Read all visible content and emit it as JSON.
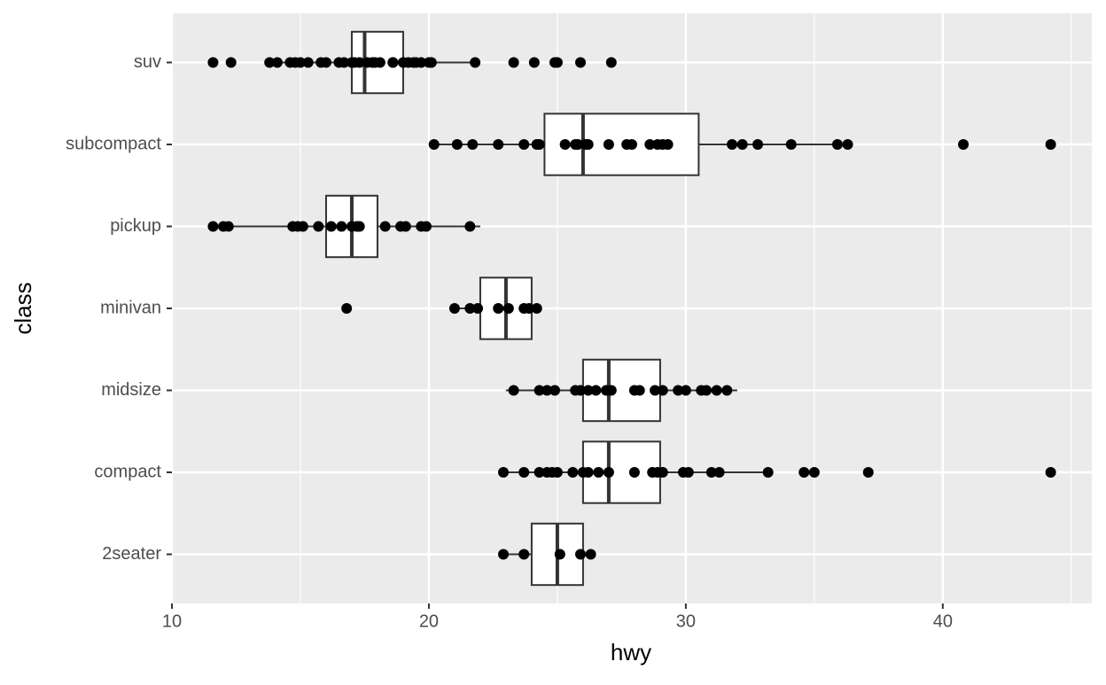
{
  "chart_data": {
    "type": "boxplot",
    "orientation": "horizontal",
    "x_label": "hwy",
    "y_label": "class",
    "categories": [
      "suv",
      "subcompact",
      "pickup",
      "minivan",
      "midsize",
      "compact",
      "2seater"
    ],
    "boxes": [
      {
        "low": 14,
        "q1": 17,
        "median": 17.5,
        "q3": 19,
        "high": 22
      },
      {
        "low": 20,
        "q1": 24.5,
        "median": 26,
        "q3": 30.5,
        "high": 36
      },
      {
        "low": 12,
        "q1": 16,
        "median": 17,
        "q3": 18,
        "high": 22
      },
      {
        "low": 21,
        "q1": 22,
        "median": 23,
        "q3": 24,
        "high": 24
      },
      {
        "low": 23,
        "q1": 26,
        "median": 27,
        "q3": 29,
        "high": 32
      },
      {
        "low": 23,
        "q1": 26,
        "median": 27,
        "q3": 29,
        "high": 33
      },
      {
        "low": 23,
        "q1": 24,
        "median": 25,
        "q3": 26,
        "high": 26
      }
    ],
    "points": [
      [
        11.6,
        12.3,
        13.8,
        14.1,
        14.6,
        14.8,
        15.0,
        15.3,
        15.8,
        16.0,
        16.5,
        16.7,
        17.0,
        17.1,
        17.3,
        17.6,
        17.8,
        17.9,
        18.1,
        18.6,
        18.6,
        19.0,
        19.2,
        19.4,
        19.5,
        19.7,
        20.0,
        20.1,
        21.8,
        23.3,
        24.1,
        24.9,
        25.0,
        25.9,
        27.1
      ],
      [
        20.2,
        21.1,
        21.7,
        22.7,
        23.7,
        24.2,
        24.3,
        25.3,
        25.7,
        25.8,
        26.1,
        26.2,
        27.0,
        27.7,
        27.9,
        28.6,
        28.9,
        29.1,
        29.3,
        31.8,
        32.2,
        32.8,
        34.1,
        35.9,
        36.3,
        40.8,
        44.2
      ],
      [
        11.6,
        12.0,
        12.2,
        14.7,
        14.9,
        15.1,
        15.7,
        16.2,
        16.6,
        17.0,
        17.2,
        17.3,
        18.3,
        18.9,
        19.1,
        19.7,
        19.9,
        21.6
      ],
      [
        16.8,
        21.0,
        21.6,
        21.9,
        22.7,
        23.1,
        23.7,
        23.9,
        24.2
      ],
      [
        23.3,
        24.3,
        24.6,
        24.9,
        25.7,
        25.9,
        26.2,
        26.5,
        26.9,
        27.1,
        28.0,
        28.2,
        28.8,
        29.1,
        29.7,
        30.0,
        30.6,
        30.8,
        31.2,
        31.6
      ],
      [
        22.9,
        23.7,
        24.3,
        24.6,
        24.8,
        25.0,
        25.6,
        26.0,
        26.2,
        26.6,
        27.0,
        28.0,
        28.7,
        28.9,
        29.1,
        29.9,
        30.1,
        31.0,
        31.3,
        33.2,
        34.6,
        35.0,
        37.1,
        44.2
      ],
      [
        22.9,
        23.7,
        25.1,
        25.9,
        26.3
      ]
    ],
    "xlim": [
      10,
      45.8
    ],
    "xticks": [
      10,
      20,
      30,
      40
    ],
    "xminorticks": [
      15,
      25,
      35,
      45
    ],
    "grid": true,
    "box_color": "#333333",
    "point_color": "#000000",
    "panel_color": "#ebebeb"
  }
}
